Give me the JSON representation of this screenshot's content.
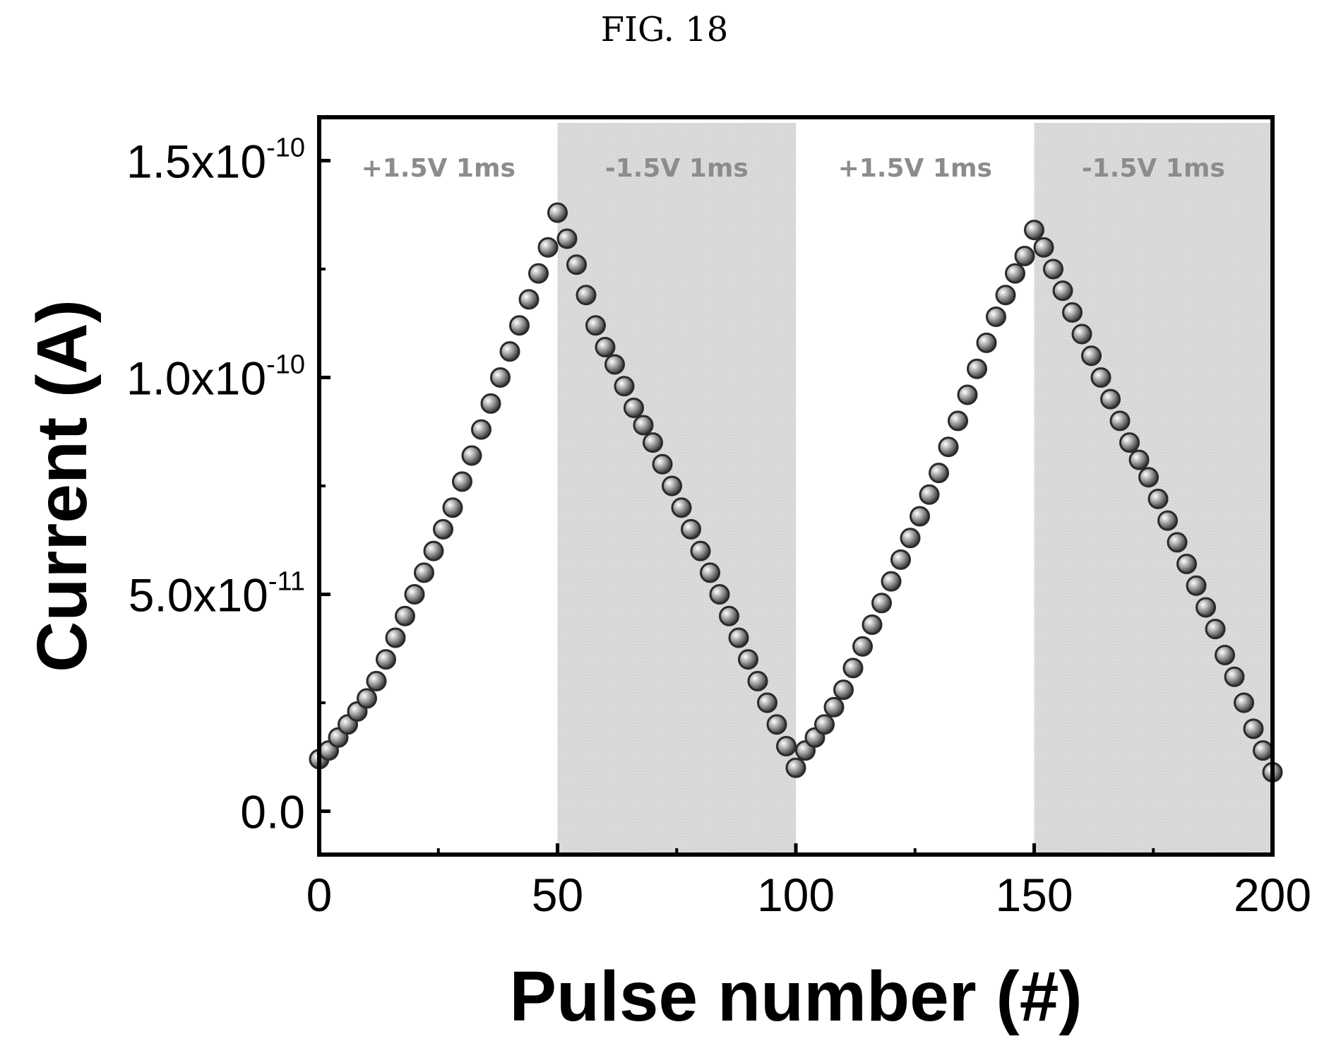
{
  "figure": {
    "title": "FIG. 18"
  },
  "chart_data": {
    "type": "scatter",
    "title": "",
    "xlabel": "Pulse number (#)",
    "ylabel": "Current (A)",
    "xlim": [
      0,
      200
    ],
    "ylim": [
      -1e-11,
      1.6e-10
    ],
    "x_ticks": [
      {
        "value": 0,
        "label": "0"
      },
      {
        "value": 50,
        "label": "50"
      },
      {
        "value": 100,
        "label": "100"
      },
      {
        "value": 150,
        "label": "150"
      },
      {
        "value": 200,
        "label": "200"
      }
    ],
    "y_ticks": [
      {
        "value": 0,
        "label": "0.0",
        "mantissa": "0.0",
        "exponent": ""
      },
      {
        "value": 5e-11,
        "label": "5.0x10-11",
        "mantissa": "5.0x10",
        "exponent": "11"
      },
      {
        "value": 1e-10,
        "label": "1.0x10-10",
        "mantissa": "1.0x10",
        "exponent": "10"
      },
      {
        "value": 1.5e-10,
        "label": "1.5x10-10",
        "mantissa": "1.5x10",
        "exponent": "10"
      }
    ],
    "regions": [
      {
        "label": "+1.5V 1ms",
        "x_start": 0,
        "x_end": 50,
        "shaded": false
      },
      {
        "label": "-1.5V 1ms",
        "x_start": 50,
        "x_end": 100,
        "shaded": true
      },
      {
        "label": "+1.5V 1ms",
        "x_start": 100,
        "x_end": 150,
        "shaded": false
      },
      {
        "label": "-1.5V 1ms",
        "x_start": 150,
        "x_end": 200,
        "shaded": true
      }
    ],
    "series": [
      {
        "marker_color": "#9a9a9a",
        "x": [
          0,
          2,
          4,
          6,
          8,
          10,
          12,
          14,
          16,
          18,
          20,
          22,
          24,
          26,
          28,
          30,
          32,
          34,
          36,
          38,
          40,
          42,
          44,
          46,
          48,
          50,
          52,
          54,
          56,
          58,
          60,
          62,
          64,
          66,
          68,
          70,
          72,
          74,
          76,
          78,
          80,
          82,
          84,
          86,
          88,
          90,
          92,
          94,
          96,
          98,
          100,
          102,
          104,
          106,
          108,
          110,
          112,
          114,
          116,
          118,
          120,
          122,
          124,
          126,
          128,
          130,
          132,
          134,
          136,
          138,
          140,
          142,
          144,
          146,
          148,
          150,
          152,
          154,
          156,
          158,
          160,
          162,
          164,
          166,
          168,
          170,
          172,
          174,
          176,
          178,
          180,
          182,
          184,
          186,
          188,
          190,
          192,
          194,
          196,
          198,
          200
        ],
        "y": [
          1.2e-11,
          1.4e-11,
          1.7e-11,
          2e-11,
          2.3e-11,
          2.6e-11,
          3e-11,
          3.5e-11,
          4e-11,
          4.5e-11,
          5e-11,
          5.5e-11,
          6e-11,
          6.5e-11,
          7e-11,
          7.6e-11,
          8.2e-11,
          8.8e-11,
          9.4e-11,
          1e-10,
          1.06e-10,
          1.12e-10,
          1.18e-10,
          1.24e-10,
          1.3e-10,
          1.38e-10,
          1.32e-10,
          1.26e-10,
          1.19e-10,
          1.12e-10,
          1.07e-10,
          1.03e-10,
          9.8e-11,
          9.3e-11,
          8.9e-11,
          8.5e-11,
          8e-11,
          7.5e-11,
          7e-11,
          6.5e-11,
          6e-11,
          5.5e-11,
          5e-11,
          4.5e-11,
          4e-11,
          3.5e-11,
          3e-11,
          2.5e-11,
          2e-11,
          1.5e-11,
          1e-11,
          1.4e-11,
          1.7e-11,
          2e-11,
          2.4e-11,
          2.8e-11,
          3.3e-11,
          3.8e-11,
          4.3e-11,
          4.8e-11,
          5.3e-11,
          5.8e-11,
          6.3e-11,
          6.8e-11,
          7.3e-11,
          7.8e-11,
          8.4e-11,
          9e-11,
          9.6e-11,
          1.02e-10,
          1.08e-10,
          1.14e-10,
          1.19e-10,
          1.24e-10,
          1.28e-10,
          1.34e-10,
          1.3e-10,
          1.25e-10,
          1.2e-10,
          1.15e-10,
          1.1e-10,
          1.05e-10,
          1e-10,
          9.5e-11,
          9e-11,
          8.5e-11,
          8.1e-11,
          7.7e-11,
          7.2e-11,
          6.7e-11,
          6.2e-11,
          5.7e-11,
          5.2e-11,
          4.7e-11,
          4.2e-11,
          3.6e-11,
          3.1e-11,
          2.5e-11,
          1.9e-11,
          1.4e-11,
          9e-12
        ]
      }
    ]
  }
}
